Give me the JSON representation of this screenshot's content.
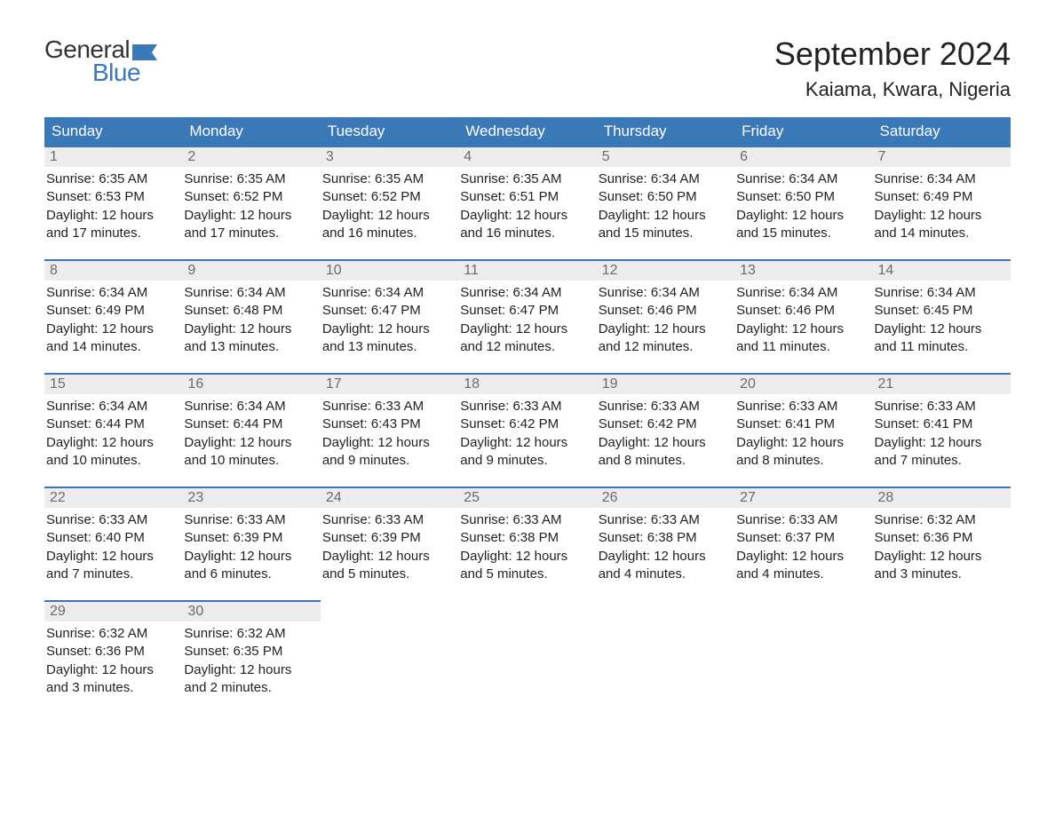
{
  "logo": {
    "text_general": "General",
    "text_blue": "Blue",
    "flag_color": "#3b78b8"
  },
  "header": {
    "month_title": "September 2024",
    "location": "Kaiama, Kwara, Nigeria"
  },
  "colors": {
    "header_bg": "#3b78b8",
    "header_text": "#ffffff",
    "daynum_bg": "#ececec",
    "daynum_text": "#6b6b6b",
    "border": "#3b78b8",
    "body_text": "#222222",
    "page_bg": "#ffffff"
  },
  "day_headers": [
    "Sunday",
    "Monday",
    "Tuesday",
    "Wednesday",
    "Thursday",
    "Friday",
    "Saturday"
  ],
  "weeks": [
    [
      {
        "day": "1",
        "sunrise": "Sunrise: 6:35 AM",
        "sunset": "Sunset: 6:53 PM",
        "daylight1": "Daylight: 12 hours",
        "daylight2": "and 17 minutes."
      },
      {
        "day": "2",
        "sunrise": "Sunrise: 6:35 AM",
        "sunset": "Sunset: 6:52 PM",
        "daylight1": "Daylight: 12 hours",
        "daylight2": "and 17 minutes."
      },
      {
        "day": "3",
        "sunrise": "Sunrise: 6:35 AM",
        "sunset": "Sunset: 6:52 PM",
        "daylight1": "Daylight: 12 hours",
        "daylight2": "and 16 minutes."
      },
      {
        "day": "4",
        "sunrise": "Sunrise: 6:35 AM",
        "sunset": "Sunset: 6:51 PM",
        "daylight1": "Daylight: 12 hours",
        "daylight2": "and 16 minutes."
      },
      {
        "day": "5",
        "sunrise": "Sunrise: 6:34 AM",
        "sunset": "Sunset: 6:50 PM",
        "daylight1": "Daylight: 12 hours",
        "daylight2": "and 15 minutes."
      },
      {
        "day": "6",
        "sunrise": "Sunrise: 6:34 AM",
        "sunset": "Sunset: 6:50 PM",
        "daylight1": "Daylight: 12 hours",
        "daylight2": "and 15 minutes."
      },
      {
        "day": "7",
        "sunrise": "Sunrise: 6:34 AM",
        "sunset": "Sunset: 6:49 PM",
        "daylight1": "Daylight: 12 hours",
        "daylight2": "and 14 minutes."
      }
    ],
    [
      {
        "day": "8",
        "sunrise": "Sunrise: 6:34 AM",
        "sunset": "Sunset: 6:49 PM",
        "daylight1": "Daylight: 12 hours",
        "daylight2": "and 14 minutes."
      },
      {
        "day": "9",
        "sunrise": "Sunrise: 6:34 AM",
        "sunset": "Sunset: 6:48 PM",
        "daylight1": "Daylight: 12 hours",
        "daylight2": "and 13 minutes."
      },
      {
        "day": "10",
        "sunrise": "Sunrise: 6:34 AM",
        "sunset": "Sunset: 6:47 PM",
        "daylight1": "Daylight: 12 hours",
        "daylight2": "and 13 minutes."
      },
      {
        "day": "11",
        "sunrise": "Sunrise: 6:34 AM",
        "sunset": "Sunset: 6:47 PM",
        "daylight1": "Daylight: 12 hours",
        "daylight2": "and 12 minutes."
      },
      {
        "day": "12",
        "sunrise": "Sunrise: 6:34 AM",
        "sunset": "Sunset: 6:46 PM",
        "daylight1": "Daylight: 12 hours",
        "daylight2": "and 12 minutes."
      },
      {
        "day": "13",
        "sunrise": "Sunrise: 6:34 AM",
        "sunset": "Sunset: 6:46 PM",
        "daylight1": "Daylight: 12 hours",
        "daylight2": "and 11 minutes."
      },
      {
        "day": "14",
        "sunrise": "Sunrise: 6:34 AM",
        "sunset": "Sunset: 6:45 PM",
        "daylight1": "Daylight: 12 hours",
        "daylight2": "and 11 minutes."
      }
    ],
    [
      {
        "day": "15",
        "sunrise": "Sunrise: 6:34 AM",
        "sunset": "Sunset: 6:44 PM",
        "daylight1": "Daylight: 12 hours",
        "daylight2": "and 10 minutes."
      },
      {
        "day": "16",
        "sunrise": "Sunrise: 6:34 AM",
        "sunset": "Sunset: 6:44 PM",
        "daylight1": "Daylight: 12 hours",
        "daylight2": "and 10 minutes."
      },
      {
        "day": "17",
        "sunrise": "Sunrise: 6:33 AM",
        "sunset": "Sunset: 6:43 PM",
        "daylight1": "Daylight: 12 hours",
        "daylight2": "and 9 minutes."
      },
      {
        "day": "18",
        "sunrise": "Sunrise: 6:33 AM",
        "sunset": "Sunset: 6:42 PM",
        "daylight1": "Daylight: 12 hours",
        "daylight2": "and 9 minutes."
      },
      {
        "day": "19",
        "sunrise": "Sunrise: 6:33 AM",
        "sunset": "Sunset: 6:42 PM",
        "daylight1": "Daylight: 12 hours",
        "daylight2": "and 8 minutes."
      },
      {
        "day": "20",
        "sunrise": "Sunrise: 6:33 AM",
        "sunset": "Sunset: 6:41 PM",
        "daylight1": "Daylight: 12 hours",
        "daylight2": "and 8 minutes."
      },
      {
        "day": "21",
        "sunrise": "Sunrise: 6:33 AM",
        "sunset": "Sunset: 6:41 PM",
        "daylight1": "Daylight: 12 hours",
        "daylight2": "and 7 minutes."
      }
    ],
    [
      {
        "day": "22",
        "sunrise": "Sunrise: 6:33 AM",
        "sunset": "Sunset: 6:40 PM",
        "daylight1": "Daylight: 12 hours",
        "daylight2": "and 7 minutes."
      },
      {
        "day": "23",
        "sunrise": "Sunrise: 6:33 AM",
        "sunset": "Sunset: 6:39 PM",
        "daylight1": "Daylight: 12 hours",
        "daylight2": "and 6 minutes."
      },
      {
        "day": "24",
        "sunrise": "Sunrise: 6:33 AM",
        "sunset": "Sunset: 6:39 PM",
        "daylight1": "Daylight: 12 hours",
        "daylight2": "and 5 minutes."
      },
      {
        "day": "25",
        "sunrise": "Sunrise: 6:33 AM",
        "sunset": "Sunset: 6:38 PM",
        "daylight1": "Daylight: 12 hours",
        "daylight2": "and 5 minutes."
      },
      {
        "day": "26",
        "sunrise": "Sunrise: 6:33 AM",
        "sunset": "Sunset: 6:38 PM",
        "daylight1": "Daylight: 12 hours",
        "daylight2": "and 4 minutes."
      },
      {
        "day": "27",
        "sunrise": "Sunrise: 6:33 AM",
        "sunset": "Sunset: 6:37 PM",
        "daylight1": "Daylight: 12 hours",
        "daylight2": "and 4 minutes."
      },
      {
        "day": "28",
        "sunrise": "Sunrise: 6:32 AM",
        "sunset": "Sunset: 6:36 PM",
        "daylight1": "Daylight: 12 hours",
        "daylight2": "and 3 minutes."
      }
    ],
    [
      {
        "day": "29",
        "sunrise": "Sunrise: 6:32 AM",
        "sunset": "Sunset: 6:36 PM",
        "daylight1": "Daylight: 12 hours",
        "daylight2": "and 3 minutes."
      },
      {
        "day": "30",
        "sunrise": "Sunrise: 6:32 AM",
        "sunset": "Sunset: 6:35 PM",
        "daylight1": "Daylight: 12 hours",
        "daylight2": "and 2 minutes."
      },
      null,
      null,
      null,
      null,
      null
    ]
  ]
}
